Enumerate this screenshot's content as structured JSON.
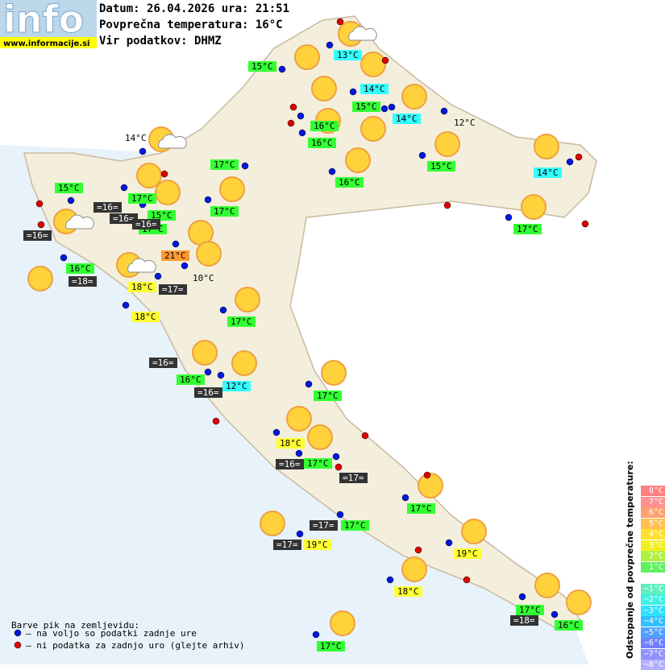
{
  "header": {
    "logo": "info",
    "url": "www.informacije.si",
    "lines": [
      "Datum: 26.04.2026 ura: 21:51",
      "Povprečna temperatura: 16°C",
      "Vir podatkov: DHMZ"
    ]
  },
  "temperatures": [
    "13°C",
    "15°C",
    "14°C",
    "15°C",
    "14°C",
    "16°C",
    "12°C",
    "16°C",
    "14°C",
    "17°C",
    "15°C",
    "15°C",
    "16°C",
    "14°C",
    "17°C",
    "15°C",
    "17°C",
    "17°C",
    "17°C",
    "21°C",
    "16°C",
    "10°C",
    "18°C",
    "18°C",
    "17°C",
    "16°C",
    "12°C",
    "17°C",
    "18°C",
    "17°C",
    "17°C",
    "17°C",
    "19°C",
    "19°C",
    "18°C",
    "17°C",
    "16°C",
    "17°C"
  ],
  "sea_temperatures": [
    "=16=",
    "=16=",
    "=16=",
    "=16=",
    "=18=",
    "=17=",
    "=16=",
    "=16=",
    "=16=",
    "=17=",
    "=17=",
    "=17=",
    "=18="
  ],
  "legend": {
    "title": "Barve pik na zemljevidu:",
    "items": [
      "– na voljo so podatki zadnje ure",
      "– ni podatka za zadnjo uro (glejte arhiv)"
    ]
  },
  "scale": {
    "title": "Odstopanje od povprečne temperature:",
    "labels": [
      "8°C",
      "7°C",
      "6°C",
      "5°C",
      "4°C",
      "3°C",
      "2°C",
      "1°C",
      "−1°C",
      "−2°C",
      "−3°C",
      "−4°C",
      "−5°C",
      "−6°C",
      "−7°C",
      "−8°C"
    ]
  }
}
